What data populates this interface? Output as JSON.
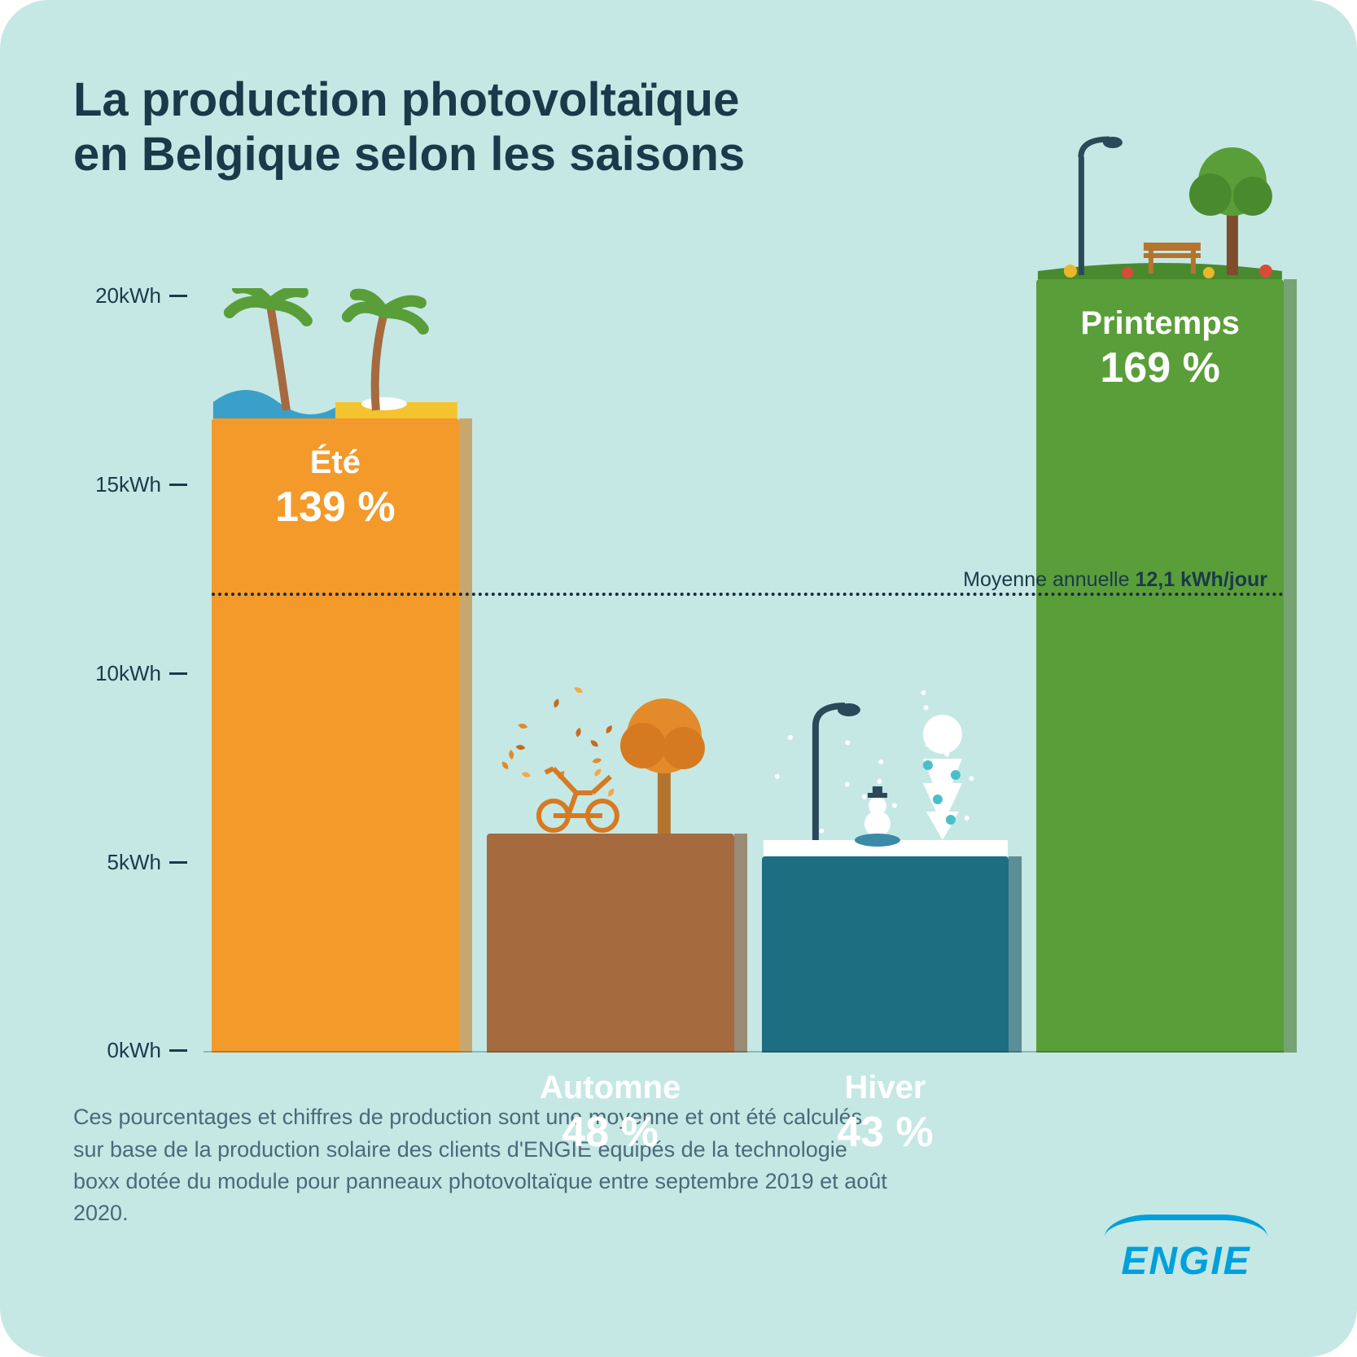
{
  "title_line1": "La production photovoltaïque",
  "title_line2": "en Belgique selon les saisons",
  "chart": {
    "type": "bar",
    "y_unit": "kWh",
    "y_ticks": [
      0,
      5,
      10,
      15,
      20
    ],
    "ymax": 22,
    "background_color": "#c5e8e5",
    "title_color": "#1a3a4a",
    "tick_color": "#1a3a4a",
    "tick_fontsize": 26,
    "title_fontsize": 58,
    "bars": [
      {
        "name": "Été",
        "pct": "139 %",
        "value_kwh": 16.8,
        "fill": "#f39a2b",
        "side": "#c97b1e",
        "label_pos": "top",
        "label_color": "#ffffff",
        "decor": "summer"
      },
      {
        "name": "Automne",
        "pct": "48 %",
        "value_kwh": 5.8,
        "fill": "#a66a3f",
        "side": "#7d4d2c",
        "label_pos": "below",
        "label_color": "#ffffff",
        "decor": "autumn"
      },
      {
        "name": "Hiver",
        "pct": "43 %",
        "value_kwh": 5.2,
        "fill": "#1e6e82",
        "side": "#145261",
        "label_pos": "below",
        "label_color": "#ffffff",
        "decor": "winter"
      },
      {
        "name": "Printemps",
        "pct": "169 %",
        "value_kwh": 20.5,
        "fill": "#5a9e3a",
        "side": "#3f7526",
        "label_pos": "top",
        "label_color": "#ffffff",
        "decor": "spring"
      }
    ],
    "avg_line": {
      "value_kwh": 12.1,
      "label_prefix": "Moyenne annuelle ",
      "label_bold": "12,1 kWh/jour",
      "color": "#1a2a3a"
    }
  },
  "footnote": "Ces pourcentages et chiffres de production sont une moyenne et ont été calculés sur base de la production solaire des clients d'ENGIE équipés de la technologie boxx dotée du module pour panneaux photovoltaïque entre septembre 2019 et août 2020.",
  "logo": {
    "text": "ENGIE",
    "color": "#00a0dc"
  }
}
